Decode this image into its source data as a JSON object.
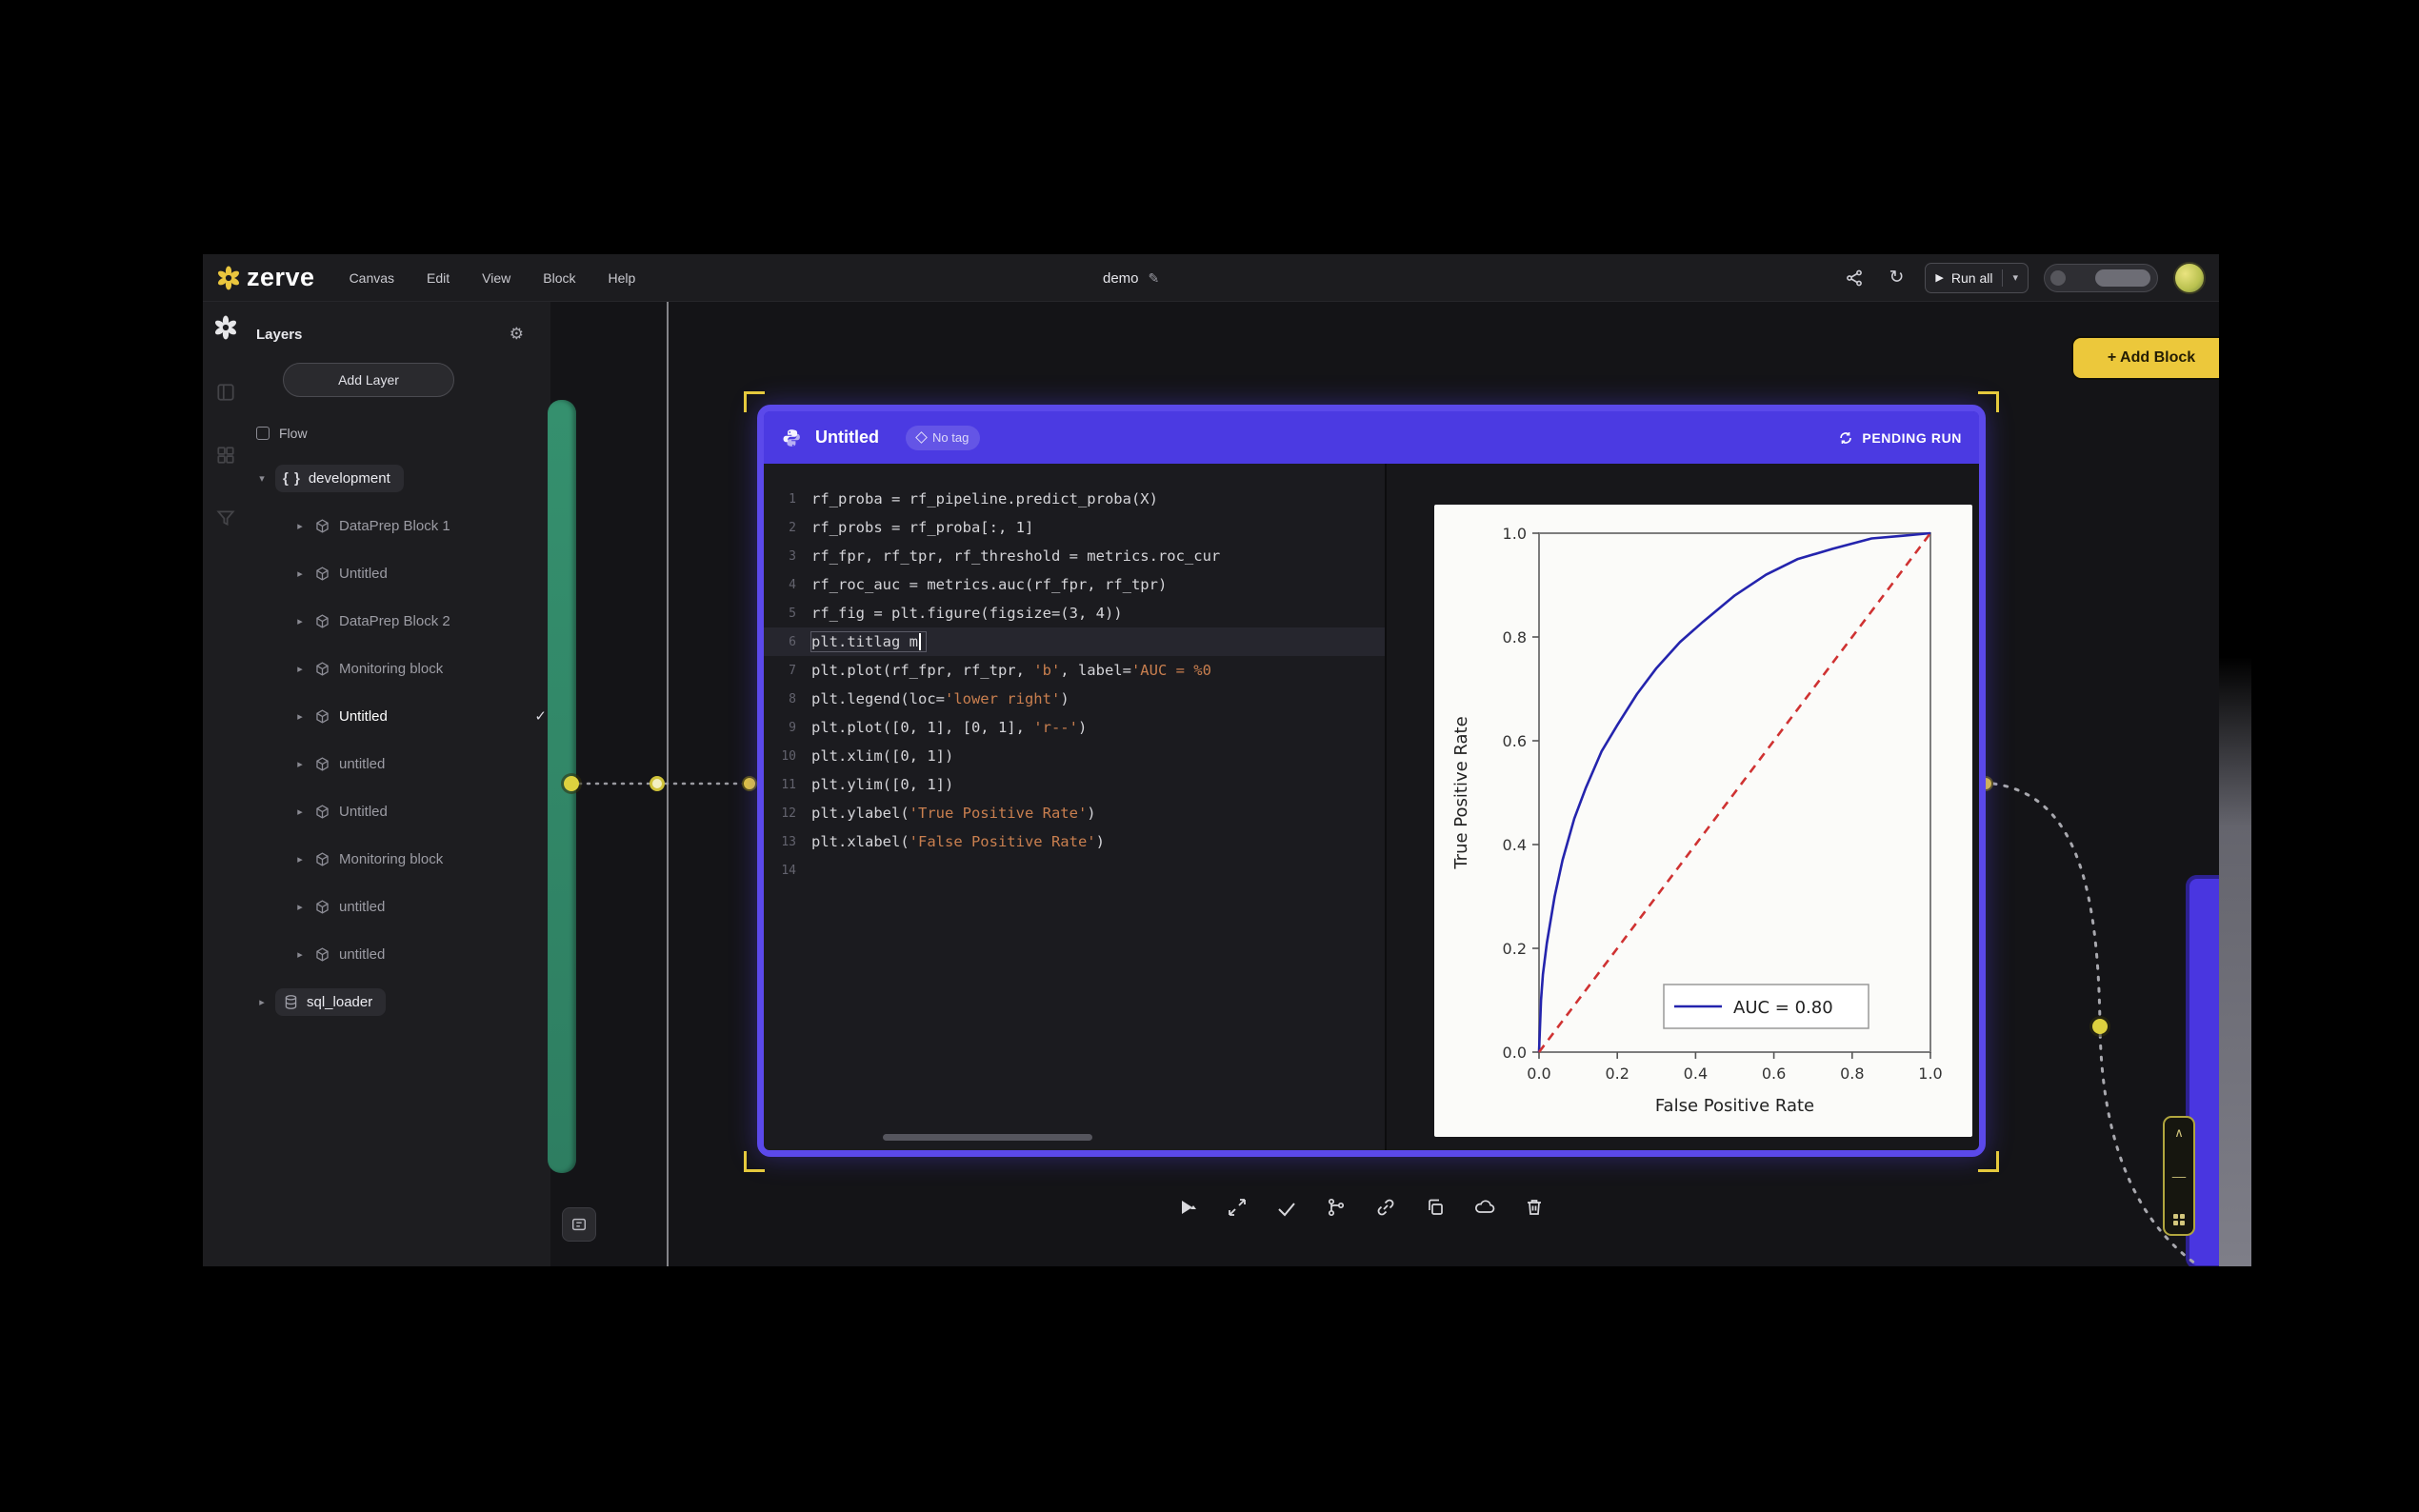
{
  "navbar": {
    "logo_text": "zerve",
    "menus": [
      {
        "label": "Canvas"
      },
      {
        "label": "Edit"
      },
      {
        "label": "View"
      },
      {
        "label": "Block"
      },
      {
        "label": "Help"
      }
    ],
    "doc_title": "demo",
    "run_all_label": "Run all"
  },
  "sidebar": {
    "panel_title": "Layers",
    "add_layer_label": "Add Layer",
    "section_label": "Flow",
    "groups": [
      {
        "label": "development",
        "icon": "braces-icon",
        "expanded": true,
        "items": [
          {
            "label": "DataPrep Block 1",
            "selected": false
          },
          {
            "label": "Untitled",
            "selected": false
          },
          {
            "label": "DataPrep Block 2",
            "selected": false
          },
          {
            "label": "Monitoring block",
            "selected": false
          },
          {
            "label": "Untitled",
            "selected": true
          },
          {
            "label": "untitled",
            "selected": false
          },
          {
            "label": "Untitled",
            "selected": false
          },
          {
            "label": "Monitoring block",
            "selected": false
          },
          {
            "label": "untitled",
            "selected": false
          },
          {
            "label": "untitled",
            "selected": false
          }
        ]
      },
      {
        "label": "sql_loader",
        "icon": "database-icon",
        "expanded": false,
        "items": []
      }
    ]
  },
  "canvas": {
    "add_block_label": "+ Add Block"
  },
  "block": {
    "title": "Untitled",
    "tag_label": "No tag",
    "status_label": "PENDING RUN",
    "editor": {
      "active_line": 6,
      "lines": [
        "rf_proba = rf_pipeline.predict_proba(X)",
        "rf_probs = rf_proba[:, 1]",
        "rf_fpr, rf_tpr, rf_threshold = metrics.roc_cur",
        "rf_roc_auc = metrics.auc(rf_fpr, rf_tpr)",
        "rf_fig = plt.figure(figsize=(3, 4))",
        "plt.titlag m",
        "plt.plot(rf_fpr, rf_tpr, 'b', label='AUC = %0",
        "plt.legend(loc='lower right')",
        "plt.plot([0, 1], [0, 1], 'r--')",
        "plt.xlim([0, 1])",
        "plt.ylim([0, 1])",
        "plt.ylabel('True Positive Rate')",
        "plt.xlabel('False Positive Rate')",
        ""
      ]
    },
    "toolbar_icons": [
      "run-icon",
      "expand-icon",
      "select-icon",
      "branch-icon",
      "link-icon",
      "duplicate-icon",
      "cloud-icon",
      "delete-icon"
    ]
  },
  "chart_data": {
    "type": "line",
    "title": "",
    "xlabel": "False Positive Rate",
    "ylabel": "True Positive Rate",
    "xlim": [
      0,
      1
    ],
    "ylim": [
      0,
      1
    ],
    "xticks": [
      0.0,
      0.2,
      0.4,
      0.6,
      0.8,
      1.0
    ],
    "yticks": [
      0.0,
      0.2,
      0.4,
      0.6,
      0.8,
      1.0
    ],
    "grid": false,
    "legend": {
      "position": "lower right",
      "entries": [
        "AUC = 0.80"
      ]
    },
    "auc": 0.8,
    "series": [
      {
        "name": "ROC curve",
        "color": "#2424ad",
        "style": "solid",
        "x": [
          0,
          0.005,
          0.01,
          0.02,
          0.04,
          0.06,
          0.09,
          0.12,
          0.16,
          0.2,
          0.25,
          0.3,
          0.36,
          0.42,
          0.5,
          0.58,
          0.66,
          0.75,
          0.85,
          0.93,
          1.0
        ],
        "y": [
          0,
          0.1,
          0.15,
          0.21,
          0.3,
          0.37,
          0.45,
          0.51,
          0.58,
          0.63,
          0.69,
          0.74,
          0.79,
          0.83,
          0.88,
          0.92,
          0.95,
          0.97,
          0.99,
          0.995,
          1.0
        ]
      },
      {
        "name": "Chance diagonal",
        "color": "#cf3232",
        "style": "dashed",
        "x": [
          0,
          1
        ],
        "y": [
          0,
          1
        ]
      }
    ]
  }
}
